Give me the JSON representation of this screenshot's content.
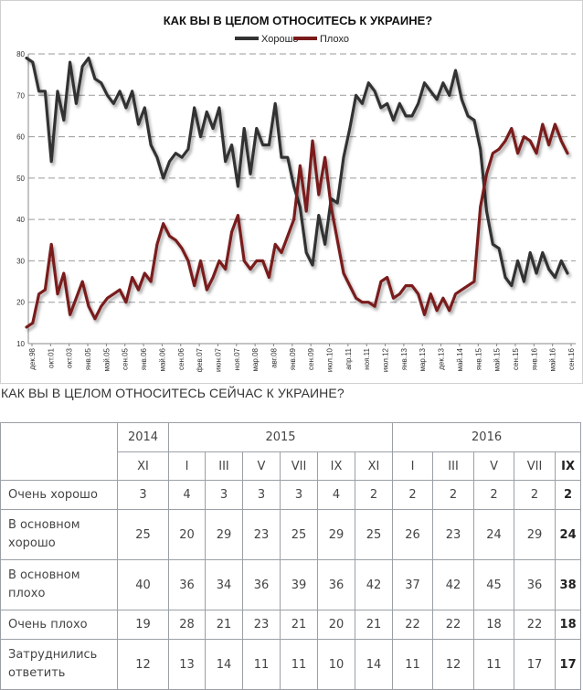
{
  "chart_data": {
    "type": "line",
    "title": "КАК ВЫ В ЦЕЛОМ ОТНОСИТЕСЬ К УКРАИНЕ?",
    "ylim": [
      10,
      80
    ],
    "yticks": [
      10,
      20,
      30,
      40,
      50,
      60,
      70,
      80
    ],
    "grid": true,
    "legend": "top-center",
    "x_tick_labels": [
      "дек.98",
      "окт.01",
      "окт.03",
      "янв.05",
      "май.05",
      "сен.05",
      "янв.06",
      "май.06",
      "сен.06",
      "фев.07",
      "июн.07",
      "ноя.07",
      "мар.08",
      "авг.08",
      "янв.09",
      "сен.09",
      "июл.10",
      "апр.11",
      "ноя.11",
      "июл.12",
      "янв.13",
      "мар.13",
      "дек.13",
      "май.14",
      "янв.15",
      "май.15",
      "сен.15",
      "янв.16",
      "май.16",
      "сен.16"
    ],
    "series": [
      {
        "name": "Хорошо",
        "color": "#333333",
        "values": [
          79,
          78,
          71,
          71,
          54,
          71,
          64,
          78,
          68,
          77,
          79,
          74,
          73,
          70,
          68,
          71,
          67,
          71,
          63,
          67,
          58,
          55,
          50,
          54,
          56,
          55,
          57,
          67,
          60,
          66,
          62,
          67,
          54,
          58,
          48,
          62,
          51,
          62,
          58,
          58,
          68,
          55,
          55,
          48,
          43,
          32,
          29,
          41,
          34,
          45,
          44,
          55,
          62,
          70,
          68,
          73,
          71,
          67,
          68,
          64,
          68,
          65,
          65,
          68,
          73,
          71,
          69,
          73,
          70,
          76,
          69,
          65,
          64,
          57,
          42,
          34,
          33,
          26,
          24,
          30,
          25,
          32,
          27,
          32,
          28,
          26,
          30,
          27
        ]
      },
      {
        "name": "Плохо",
        "color": "#7a1a1a",
        "values": [
          14,
          15,
          22,
          23,
          34,
          22,
          27,
          17,
          21,
          25,
          19,
          16,
          19,
          21,
          22,
          23,
          20,
          26,
          23,
          27,
          25,
          34,
          39,
          36,
          35,
          33,
          30,
          24,
          30,
          23,
          26,
          30,
          28,
          37,
          41,
          30,
          28,
          30,
          30,
          26,
          34,
          32,
          36,
          40,
          53,
          42,
          59,
          46,
          55,
          43,
          35,
          27,
          24,
          21,
          20,
          20,
          19,
          25,
          26,
          21,
          22,
          24,
          24,
          22,
          17,
          22,
          18,
          21,
          18,
          22,
          23,
          24,
          25,
          43,
          51,
          56,
          57,
          59,
          62,
          56,
          60,
          59,
          56,
          63,
          58,
          63,
          59,
          56
        ]
      }
    ]
  },
  "table": {
    "heading": "КАК ВЫ В ЦЕЛОМ ОТНОСИТЕСЬ СЕЙЧАС К УКРАИНЕ?",
    "years": [
      "2014",
      "2015",
      "2016"
    ],
    "months": [
      "XI",
      "I",
      "III",
      "V",
      "VII",
      "IX",
      "XI",
      "I",
      "III",
      "V",
      "VII",
      "IX"
    ],
    "rows": [
      {
        "label": "Очень хорошо",
        "values": [
          "3",
          "4",
          "3",
          "3",
          "3",
          "4",
          "2",
          "2",
          "2",
          "2",
          "2",
          "2"
        ]
      },
      {
        "label": "В основном хорошо",
        "values": [
          "25",
          "20",
          "29",
          "23",
          "25",
          "29",
          "25",
          "26",
          "23",
          "24",
          "29",
          "24"
        ]
      },
      {
        "label": "В основном плохо",
        "values": [
          "40",
          "36",
          "34",
          "36",
          "39",
          "36",
          "42",
          "37",
          "42",
          "45",
          "36",
          "38"
        ]
      },
      {
        "label": "Очень плохо",
        "values": [
          "19",
          "28",
          "21",
          "23",
          "21",
          "20",
          "21",
          "22",
          "22",
          "18",
          "22",
          "18"
        ]
      },
      {
        "label": "Затруднились ответить",
        "values": [
          "12",
          "13",
          "14",
          "11",
          "11",
          "10",
          "14",
          "11",
          "12",
          "11",
          "17",
          "17"
        ]
      }
    ]
  }
}
